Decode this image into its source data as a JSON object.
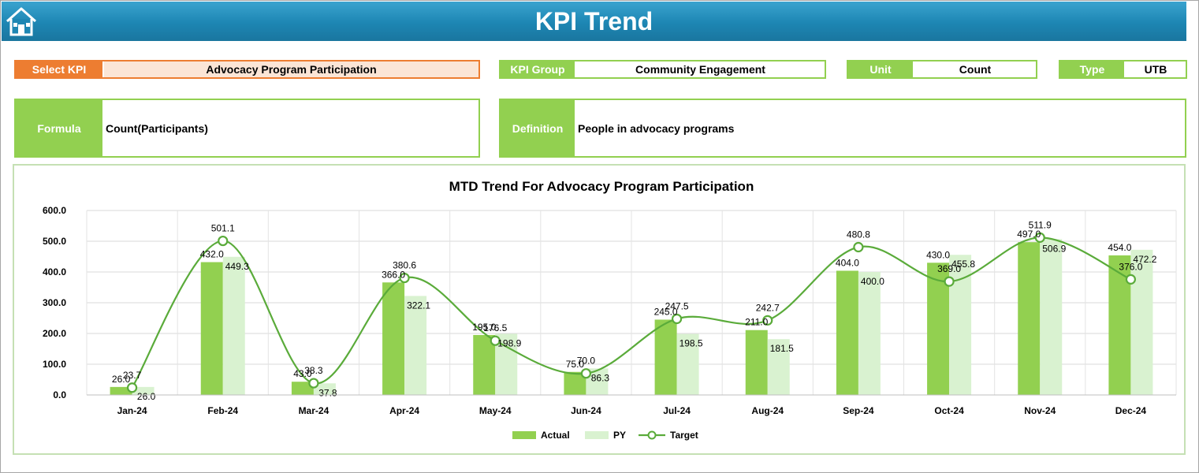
{
  "header": {
    "title": "KPI Trend",
    "home_icon": "home-icon"
  },
  "selectors": {
    "kpi_label": "Select KPI",
    "kpi_value": "Advocacy Program Participation",
    "group_label": "KPI Group",
    "group_value": "Community Engagement",
    "unit_label": "Unit",
    "unit_value": "Count",
    "type_label": "Type",
    "type_value": "UTB"
  },
  "info": {
    "formula_label": "Formula",
    "formula_value": "Count(Participants)",
    "definition_label": "Definition",
    "definition_value": "People in advocacy programs"
  },
  "colors": {
    "actual": "#92d050",
    "py": "#d9f2d0",
    "target": "#5aab3a",
    "accent_orange": "#ed7d31",
    "header": "#1d86b3"
  },
  "chart_data": {
    "type": "bar",
    "title": "MTD Trend For Advocacy Program Participation",
    "categories": [
      "Jan-24",
      "Feb-24",
      "Mar-24",
      "Apr-24",
      "May-24",
      "Jun-24",
      "Jul-24",
      "Aug-24",
      "Sep-24",
      "Oct-24",
      "Nov-24",
      "Dec-24"
    ],
    "series": [
      {
        "name": "Actual",
        "type": "bar",
        "values": [
          26.0,
          432.0,
          43.0,
          366.0,
          195.0,
          75.0,
          245.0,
          211.0,
          404.0,
          430.0,
          497.0,
          454.0
        ]
      },
      {
        "name": "PY",
        "type": "bar",
        "values": [
          26.0,
          449.3,
          37.8,
          322.1,
          198.9,
          86.3,
          198.5,
          181.5,
          400.0,
          455.8,
          506.9,
          472.2
        ]
      },
      {
        "name": "Target",
        "type": "line",
        "values": [
          23.7,
          501.1,
          38.3,
          380.6,
          176.5,
          70.0,
          247.5,
          242.7,
          480.8,
          369.0,
          511.9,
          376.0
        ]
      }
    ],
    "y_ticks": [
      "0.0",
      "100.0",
      "200.0",
      "300.0",
      "400.0",
      "500.0",
      "600.0"
    ],
    "ylim": [
      0,
      600
    ],
    "grid": true,
    "legend": "bottom"
  }
}
